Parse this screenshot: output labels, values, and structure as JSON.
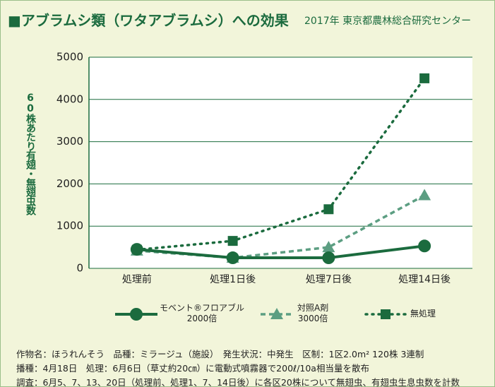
{
  "chart_data": {
    "type": "line",
    "title": "■アブラムシ類（ワタアブラムシ）への効果",
    "subtitle": "2017年 東京都農林総合研究センター",
    "ylabel": "60株あたり有翅・無翅虫数",
    "categories": [
      "処理前",
      "処理1日後",
      "処理7日後",
      "処理14日後"
    ],
    "ylim": [
      0,
      5000
    ],
    "yticks": [
      0,
      1000,
      2000,
      3000,
      4000,
      5000
    ],
    "grid": true,
    "series": [
      {
        "name": "モベント®フロアブル\n2000倍",
        "color": "#1b6b3e",
        "style": "solid",
        "marker": "circle",
        "values": [
          450,
          250,
          250,
          530
        ]
      },
      {
        "name": "対照A剤\n3000倍",
        "color": "#5c9e82",
        "style": "dashed",
        "marker": "triangle",
        "values": [
          420,
          250,
          500,
          1730
        ]
      },
      {
        "name": "無処理",
        "color": "#1b6b3e",
        "style": "dotted",
        "marker": "square",
        "values": [
          440,
          650,
          1400,
          4500
        ]
      }
    ],
    "notes": [
      "作物名：ほうれんそう　品種：ミラージュ（施設）　発生状況：中発生　区制：1区2.0m² 120株 3連制",
      "播種：4月18日　処理：6月6日（草丈約20㎝）に電動式噴霧器で200ℓ/10a相当量を散布",
      "調査：6月5、7、13、20日（処理前、処理1、7、14日後）に各区20株について無翅虫、有翅虫生息虫数を計数"
    ]
  }
}
